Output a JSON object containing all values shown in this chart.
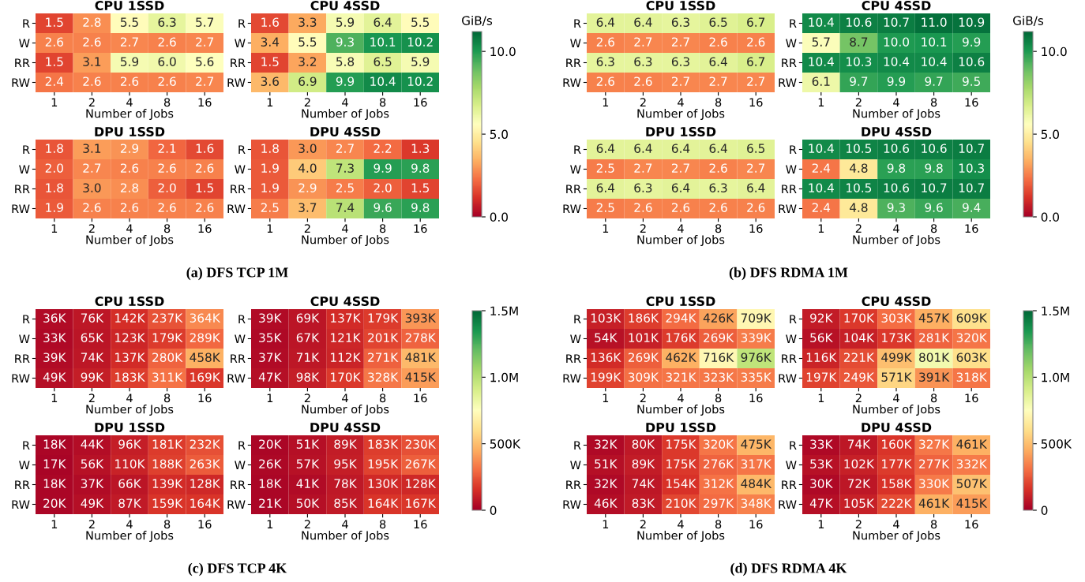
{
  "chart_data": [
    {
      "type": "heatmap",
      "title": "CPU 1SSD",
      "xlabel": "Number of Jobs",
      "categories": [
        "1",
        "2",
        "4",
        "8",
        "16"
      ],
      "y_categories": [
        "R",
        "W",
        "RR",
        "RW"
      ],
      "cells": [
        [
          1.5,
          2.8,
          5.5,
          6.3,
          5.7
        ],
        [
          2.6,
          2.6,
          2.7,
          2.6,
          2.7
        ],
        [
          1.5,
          3.1,
          5.9,
          6.0,
          5.6
        ],
        [
          2.4,
          2.6,
          2.6,
          2.6,
          2.7
        ]
      ],
      "cell_labels": [
        [
          "1.5",
          "2.8",
          "5.5",
          "6.3",
          "5.7"
        ],
        [
          "2.6",
          "2.6",
          "2.7",
          "2.6",
          "2.7"
        ],
        [
          "1.5",
          "3.1",
          "5.9",
          "6.0",
          "5.6"
        ],
        [
          "2.4",
          "2.6",
          "2.6",
          "2.6",
          "2.7"
        ]
      ]
    },
    {
      "type": "heatmap",
      "title": "CPU 4SSD",
      "xlabel": "Number of Jobs",
      "categories": [
        "1",
        "2",
        "4",
        "8",
        "16"
      ],
      "y_categories": [
        "R",
        "W",
        "RR",
        "RW"
      ],
      "clim": [
        0,
        11.2
      ],
      "clabel": "GiB/s",
      "cticks": [
        {
          "value": 0,
          "label": "0.0"
        },
        {
          "value": 5,
          "label": "5.0"
        },
        {
          "value": 10,
          "label": "10.0"
        }
      ],
      "cells": [
        [
          1.6,
          3.3,
          5.9,
          6.4,
          5.5
        ],
        [
          3.4,
          5.5,
          9.3,
          10.1,
          10.2
        ],
        [
          1.5,
          3.2,
          5.8,
          6.5,
          5.9
        ],
        [
          3.6,
          6.9,
          9.9,
          10.4,
          10.2
        ]
      ],
      "cell_labels": [
        [
          "1.6",
          "3.3",
          "5.9",
          "6.4",
          "5.5"
        ],
        [
          "3.4",
          "5.5",
          "9.3",
          "10.1",
          "10.2"
        ],
        [
          "1.5",
          "3.2",
          "5.8",
          "6.5",
          "5.9"
        ],
        [
          "3.6",
          "6.9",
          "9.9",
          "10.4",
          "10.2"
        ]
      ]
    },
    {
      "type": "heatmap",
      "title": "DPU 1SSD",
      "xlabel": "Number of Jobs",
      "categories": [
        "1",
        "2",
        "4",
        "8",
        "16"
      ],
      "y_categories": [
        "R",
        "W",
        "RR",
        "RW"
      ],
      "cells": [
        [
          1.8,
          3.1,
          2.9,
          2.1,
          1.6
        ],
        [
          2.0,
          2.7,
          2.6,
          2.6,
          2.6
        ],
        [
          1.8,
          3.0,
          2.8,
          2.0,
          1.5
        ],
        [
          1.9,
          2.6,
          2.6,
          2.6,
          2.6
        ]
      ],
      "cell_labels": [
        [
          "1.8",
          "3.1",
          "2.9",
          "2.1",
          "1.6"
        ],
        [
          "2.0",
          "2.7",
          "2.6",
          "2.6",
          "2.6"
        ],
        [
          "1.8",
          "3.0",
          "2.8",
          "2.0",
          "1.5"
        ],
        [
          "1.9",
          "2.6",
          "2.6",
          "2.6",
          "2.6"
        ]
      ]
    },
    {
      "type": "heatmap",
      "title": "DPU 4SSD",
      "xlabel": "Number of Jobs",
      "categories": [
        "1",
        "2",
        "4",
        "8",
        "16"
      ],
      "y_categories": [
        "R",
        "W",
        "RR",
        "RW"
      ],
      "annotations": [
        "(a) DFS TCP 1M"
      ],
      "cells": [
        [
          1.8,
          3.0,
          2.7,
          2.2,
          1.3
        ],
        [
          1.9,
          4.0,
          7.3,
          9.9,
          9.8
        ],
        [
          1.9,
          2.9,
          2.5,
          2.0,
          1.5
        ],
        [
          2.5,
          3.7,
          7.4,
          9.6,
          9.8
        ]
      ],
      "cell_labels": [
        [
          "1.8",
          "3.0",
          "2.7",
          "2.2",
          "1.3"
        ],
        [
          "1.9",
          "4.0",
          "7.3",
          "9.9",
          "9.8"
        ],
        [
          "1.9",
          "2.9",
          "2.5",
          "2.0",
          "1.5"
        ],
        [
          "2.5",
          "3.7",
          "7.4",
          "9.6",
          "9.8"
        ]
      ]
    },
    {
      "type": "heatmap",
      "title": "CPU 1SSD",
      "xlabel": "Number of Jobs",
      "categories": [
        "1",
        "2",
        "4",
        "8",
        "16"
      ],
      "y_categories": [
        "R",
        "W",
        "RR",
        "RW"
      ],
      "cells": [
        [
          6.4,
          6.4,
          6.3,
          6.5,
          6.7
        ],
        [
          2.6,
          2.7,
          2.7,
          2.6,
          2.6
        ],
        [
          6.3,
          6.3,
          6.3,
          6.4,
          6.7
        ],
        [
          2.6,
          2.6,
          2.7,
          2.7,
          2.7
        ]
      ],
      "cell_labels": [
        [
          "6.4",
          "6.4",
          "6.3",
          "6.5",
          "6.7"
        ],
        [
          "2.6",
          "2.7",
          "2.7",
          "2.6",
          "2.6"
        ],
        [
          "6.3",
          "6.3",
          "6.3",
          "6.4",
          "6.7"
        ],
        [
          "2.6",
          "2.6",
          "2.7",
          "2.7",
          "2.7"
        ]
      ]
    },
    {
      "type": "heatmap",
      "title": "CPU 4SSD",
      "xlabel": "Number of Jobs",
      "categories": [
        "1",
        "2",
        "4",
        "8",
        "16"
      ],
      "y_categories": [
        "R",
        "W",
        "RR",
        "RW"
      ],
      "clim": [
        0,
        11.2
      ],
      "clabel": "GiB/s",
      "cticks": [
        {
          "value": 0,
          "label": "0.0"
        },
        {
          "value": 5,
          "label": "5.0"
        },
        {
          "value": 10,
          "label": "10.0"
        }
      ],
      "cells": [
        [
          10.4,
          10.6,
          10.7,
          11.0,
          10.9
        ],
        [
          5.7,
          8.7,
          10.0,
          10.1,
          9.9
        ],
        [
          10.4,
          10.3,
          10.4,
          10.4,
          10.6
        ],
        [
          6.1,
          9.7,
          9.9,
          9.7,
          9.5
        ]
      ],
      "cell_labels": [
        [
          "10.4",
          "10.6",
          "10.7",
          "11.0",
          "10.9"
        ],
        [
          "5.7",
          "8.7",
          "10.0",
          "10.1",
          "9.9"
        ],
        [
          "10.4",
          "10.3",
          "10.4",
          "10.4",
          "10.6"
        ],
        [
          "6.1",
          "9.7",
          "9.9",
          "9.7",
          "9.5"
        ]
      ]
    },
    {
      "type": "heatmap",
      "title": "DPU 1SSD",
      "xlabel": "Number of Jobs",
      "categories": [
        "1",
        "2",
        "4",
        "8",
        "16"
      ],
      "y_categories": [
        "R",
        "W",
        "RR",
        "RW"
      ],
      "cells": [
        [
          6.4,
          6.4,
          6.4,
          6.4,
          6.5
        ],
        [
          2.5,
          2.7,
          2.7,
          2.6,
          2.7
        ],
        [
          6.4,
          6.3,
          6.4,
          6.3,
          6.4
        ],
        [
          2.5,
          2.6,
          2.6,
          2.6,
          2.6
        ]
      ],
      "cell_labels": [
        [
          "6.4",
          "6.4",
          "6.4",
          "6.4",
          "6.5"
        ],
        [
          "2.5",
          "2.7",
          "2.7",
          "2.6",
          "2.7"
        ],
        [
          "6.4",
          "6.3",
          "6.4",
          "6.3",
          "6.4"
        ],
        [
          "2.5",
          "2.6",
          "2.6",
          "2.6",
          "2.6"
        ]
      ]
    },
    {
      "type": "heatmap",
      "title": "DPU 4SSD",
      "xlabel": "Number of Jobs",
      "categories": [
        "1",
        "2",
        "4",
        "8",
        "16"
      ],
      "y_categories": [
        "R",
        "W",
        "RR",
        "RW"
      ],
      "annotations": [
        "(b) DFS RDMA 1M"
      ],
      "cells": [
        [
          10.4,
          10.5,
          10.6,
          10.6,
          10.7
        ],
        [
          2.4,
          4.8,
          9.8,
          9.8,
          10.3
        ],
        [
          10.4,
          10.5,
          10.6,
          10.7,
          10.7
        ],
        [
          2.4,
          4.8,
          9.3,
          9.6,
          9.4
        ]
      ],
      "cell_labels": [
        [
          "10.4",
          "10.5",
          "10.6",
          "10.6",
          "10.7"
        ],
        [
          "2.4",
          "4.8",
          "9.8",
          "9.8",
          "10.3"
        ],
        [
          "10.4",
          "10.5",
          "10.6",
          "10.7",
          "10.7"
        ],
        [
          "2.4",
          "4.8",
          "9.3",
          "9.6",
          "9.4"
        ]
      ]
    },
    {
      "type": "heatmap",
      "title": "CPU 1SSD",
      "xlabel": "Number of Jobs",
      "categories": [
        "1",
        "2",
        "4",
        "8",
        "16"
      ],
      "y_categories": [
        "R",
        "W",
        "RR",
        "RW"
      ],
      "cells": [
        [
          36000,
          76000,
          142000,
          237000,
          364000
        ],
        [
          33000,
          65000,
          123000,
          179000,
          289000
        ],
        [
          39000,
          74000,
          137000,
          280000,
          458000
        ],
        [
          49000,
          99000,
          183000,
          311000,
          169000
        ]
      ],
      "cell_labels": [
        [
          "36K",
          "76K",
          "142K",
          "237K",
          "364K"
        ],
        [
          "33K",
          "65K",
          "123K",
          "179K",
          "289K"
        ],
        [
          "39K",
          "74K",
          "137K",
          "280K",
          "458K"
        ],
        [
          "49K",
          "99K",
          "183K",
          "311K",
          "169K"
        ]
      ]
    },
    {
      "type": "heatmap",
      "title": "CPU 4SSD",
      "xlabel": "Number of Jobs",
      "categories": [
        "1",
        "2",
        "4",
        "8",
        "16"
      ],
      "y_categories": [
        "R",
        "W",
        "RR",
        "RW"
      ],
      "clim": [
        0,
        1500000
      ],
      "cticks": [
        0,
        {
          "value": 500000,
          "label": "500K"
        },
        {
          "value": 1000000,
          "label": "1.0M"
        },
        {
          "value": 1500000,
          "label": "1.5M"
        }
      ],
      "cells": [
        [
          39000,
          69000,
          137000,
          179000,
          393000
        ],
        [
          35000,
          67000,
          121000,
          201000,
          278000
        ],
        [
          37000,
          71000,
          112000,
          271000,
          481000
        ],
        [
          47000,
          98000,
          170000,
          328000,
          415000
        ]
      ],
      "cell_labels": [
        [
          "39K",
          "69K",
          "137K",
          "179K",
          "393K"
        ],
        [
          "35K",
          "67K",
          "121K",
          "201K",
          "278K"
        ],
        [
          "37K",
          "71K",
          "112K",
          "271K",
          "481K"
        ],
        [
          "47K",
          "98K",
          "170K",
          "328K",
          "415K"
        ]
      ]
    },
    {
      "type": "heatmap",
      "title": "DPU 1SSD",
      "xlabel": "Number of Jobs",
      "categories": [
        "1",
        "2",
        "4",
        "8",
        "16"
      ],
      "y_categories": [
        "R",
        "W",
        "RR",
        "RW"
      ],
      "cells": [
        [
          18000,
          44000,
          96000,
          181000,
          232000
        ],
        [
          17000,
          56000,
          110000,
          188000,
          263000
        ],
        [
          18000,
          37000,
          66000,
          139000,
          128000
        ],
        [
          20000,
          49000,
          87000,
          159000,
          164000
        ]
      ],
      "cell_labels": [
        [
          "18K",
          "44K",
          "96K",
          "181K",
          "232K"
        ],
        [
          "17K",
          "56K",
          "110K",
          "188K",
          "263K"
        ],
        [
          "18K",
          "37K",
          "66K",
          "139K",
          "128K"
        ],
        [
          "20K",
          "49K",
          "87K",
          "159K",
          "164K"
        ]
      ]
    },
    {
      "type": "heatmap",
      "title": "DPU 4SSD",
      "xlabel": "Number of Jobs",
      "categories": [
        "1",
        "2",
        "4",
        "8",
        "16"
      ],
      "y_categories": [
        "R",
        "W",
        "RR",
        "RW"
      ],
      "annotations": [
        "(c) DFS TCP 4K"
      ],
      "cells": [
        [
          20000,
          51000,
          89000,
          183000,
          230000
        ],
        [
          26000,
          57000,
          95000,
          195000,
          267000
        ],
        [
          18000,
          41000,
          78000,
          130000,
          128000
        ],
        [
          21000,
          50000,
          85000,
          164000,
          167000
        ]
      ],
      "cell_labels": [
        [
          "20K",
          "51K",
          "89K",
          "183K",
          "230K"
        ],
        [
          "26K",
          "57K",
          "95K",
          "195K",
          "267K"
        ],
        [
          "18K",
          "41K",
          "78K",
          "130K",
          "128K"
        ],
        [
          "21K",
          "50K",
          "85K",
          "164K",
          "167K"
        ]
      ]
    },
    {
      "type": "heatmap",
      "title": "CPU 1SSD",
      "xlabel": "Number of Jobs",
      "categories": [
        "1",
        "2",
        "4",
        "8",
        "16"
      ],
      "y_categories": [
        "R",
        "W",
        "RR",
        "RW"
      ],
      "cells": [
        [
          103000,
          186000,
          294000,
          426000,
          709000
        ],
        [
          54000,
          101000,
          176000,
          269000,
          339000
        ],
        [
          136000,
          269000,
          462000,
          716000,
          976000
        ],
        [
          199000,
          309000,
          321000,
          323000,
          335000
        ]
      ],
      "cell_labels": [
        [
          "103K",
          "186K",
          "294K",
          "426K",
          "709K"
        ],
        [
          "54K",
          "101K",
          "176K",
          "269K",
          "339K"
        ],
        [
          "136K",
          "269K",
          "462K",
          "716K",
          "976K"
        ],
        [
          "199K",
          "309K",
          "321K",
          "323K",
          "335K"
        ]
      ]
    },
    {
      "type": "heatmap",
      "title": "CPU 4SSD",
      "xlabel": "Number of Jobs",
      "categories": [
        "1",
        "2",
        "4",
        "8",
        "16"
      ],
      "y_categories": [
        "R",
        "W",
        "RR",
        "RW"
      ],
      "clim": [
        0,
        1500000
      ],
      "cticks": [
        0,
        {
          "value": 500000,
          "label": "500K"
        },
        {
          "value": 1000000,
          "label": "1.0M"
        },
        {
          "value": 1500000,
          "label": "1.5M"
        }
      ],
      "cells": [
        [
          92000,
          170000,
          303000,
          457000,
          609000
        ],
        [
          56000,
          104000,
          173000,
          281000,
          320000
        ],
        [
          116000,
          221000,
          499000,
          801000,
          603000
        ],
        [
          197000,
          249000,
          571000,
          391000,
          318000
        ]
      ],
      "cell_labels": [
        [
          "92K",
          "170K",
          "303K",
          "457K",
          "609K"
        ],
        [
          "56K",
          "104K",
          "173K",
          "281K",
          "320K"
        ],
        [
          "116K",
          "221K",
          "499K",
          "801K",
          "603K"
        ],
        [
          "197K",
          "249K",
          "571K",
          "391K",
          "318K"
        ]
      ]
    },
    {
      "type": "heatmap",
      "title": "DPU 1SSD",
      "xlabel": "Number of Jobs",
      "categories": [
        "1",
        "2",
        "4",
        "8",
        "16"
      ],
      "y_categories": [
        "R",
        "W",
        "RR",
        "RW"
      ],
      "cells": [
        [
          32000,
          80000,
          175000,
          320000,
          475000
        ],
        [
          51000,
          89000,
          175000,
          276000,
          317000
        ],
        [
          32000,
          74000,
          154000,
          312000,
          484000
        ],
        [
          46000,
          83000,
          210000,
          297000,
          348000
        ]
      ],
      "cell_labels": [
        [
          "32K",
          "80K",
          "175K",
          "320K",
          "475K"
        ],
        [
          "51K",
          "89K",
          "175K",
          "276K",
          "317K"
        ],
        [
          "32K",
          "74K",
          "154K",
          "312K",
          "484K"
        ],
        [
          "46K",
          "83K",
          "210K",
          "297K",
          "348K"
        ]
      ]
    },
    {
      "type": "heatmap",
      "title": "DPU 4SSD",
      "xlabel": "Number of Jobs",
      "categories": [
        "1",
        "2",
        "4",
        "8",
        "16"
      ],
      "y_categories": [
        "R",
        "W",
        "RR",
        "RW"
      ],
      "annotations": [
        "(d) DFS RDMA 4K"
      ],
      "cells": [
        [
          33000,
          74000,
          160000,
          327000,
          461000
        ],
        [
          53000,
          102000,
          177000,
          277000,
          332000
        ],
        [
          30000,
          72000,
          158000,
          330000,
          507000
        ],
        [
          47000,
          105000,
          222000,
          461000,
          415000
        ]
      ],
      "cell_labels": [
        [
          "33K",
          "74K",
          "160K",
          "327K",
          "461K"
        ],
        [
          "53K",
          "102K",
          "177K",
          "277K",
          "332K"
        ],
        [
          "30K",
          "72K",
          "158K",
          "330K",
          "507K"
        ],
        [
          "47K",
          "105K",
          "222K",
          "461K",
          "415K"
        ]
      ]
    }
  ]
}
